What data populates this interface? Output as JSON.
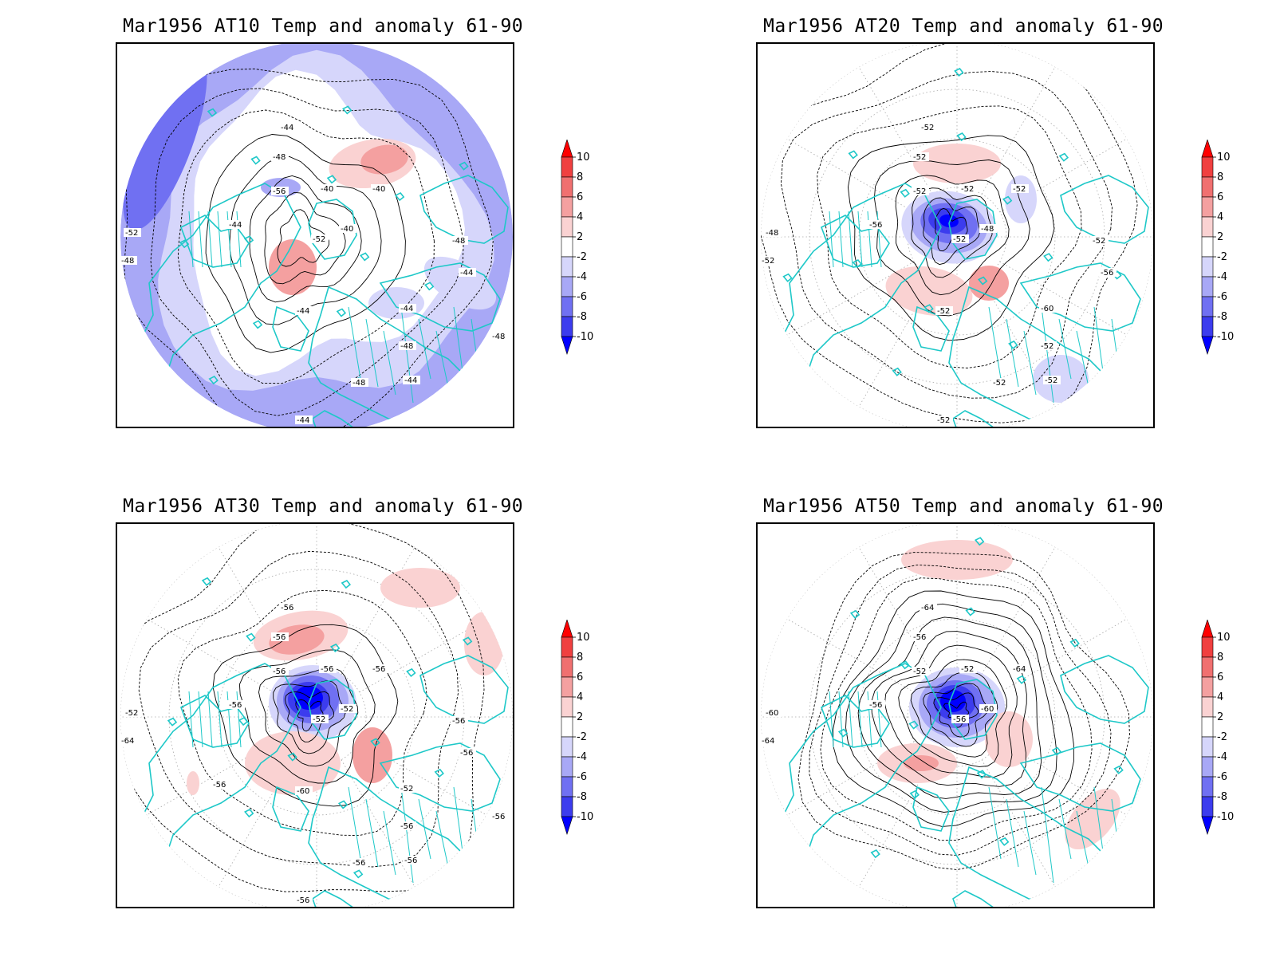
{
  "panels": [
    {
      "title": "Mar1956 AT10 Temp and anomaly 61-90",
      "contour_labels": [
        "-44",
        "-48",
        "-56",
        "-40",
        "-40",
        "-40",
        "-52",
        "-44",
        "-52",
        "-48",
        "-44",
        "-44",
        "-44",
        "-48",
        "-48",
        "-44",
        "-48",
        "-44",
        "-48"
      ]
    },
    {
      "title": "Mar1956 AT20 Temp and anomaly 61-90",
      "contour_labels": [
        "-52",
        "-52",
        "-52",
        "-52",
        "-52",
        "-48",
        "-52",
        "-56",
        "-48",
        "-52",
        "-52",
        "-60",
        "-56",
        "-52",
        "-52",
        "-52",
        "-52",
        "-52"
      ]
    },
    {
      "title": "Mar1956 AT30 Temp and anomaly 61-90",
      "contour_labels": [
        "-56",
        "-56",
        "-56",
        "-56",
        "-56",
        "-52",
        "-52",
        "-56",
        "-52",
        "-64",
        "-60",
        "-52",
        "-56",
        "-56",
        "-56",
        "-56",
        "-56",
        "-56",
        "-56",
        "-56"
      ]
    },
    {
      "title": "Mar1956 AT50 Temp and anomaly 61-90",
      "contour_labels": [
        "-64",
        "-56",
        "-52",
        "-52",
        "-64",
        "-60",
        "-56",
        "-56",
        "-60",
        "-64"
      ]
    }
  ],
  "colorbar": {
    "labels": [
      "10",
      "8",
      "6",
      "4",
      "2",
      "-2",
      "-4",
      "-6",
      "-8",
      "-10"
    ],
    "colors": [
      "#ff0000",
      "#f04040",
      "#f07070",
      "#f4a0a0",
      "#fad2d2",
      "#ffffff",
      "#d6d6fb",
      "#a8a8f6",
      "#7070f2",
      "#3c3cee",
      "#0000ff"
    ]
  },
  "colors": {
    "coastline": "#1ec8c8",
    "contour": "#000000",
    "grid": "#aaaaaa"
  }
}
